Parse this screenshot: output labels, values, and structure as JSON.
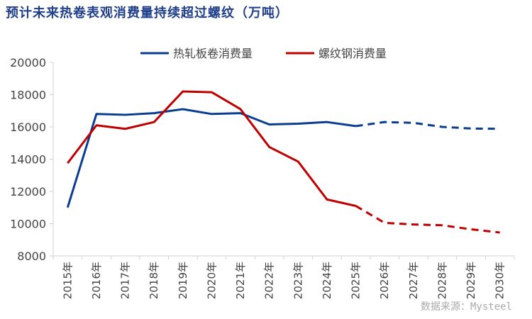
{
  "chart_data": {
    "type": "line",
    "title": "预计未来热卷表观消费量持续超过螺纹（万吨）",
    "categories": [
      "2015年",
      "2016年",
      "2017年",
      "2018年",
      "2019年",
      "2020年",
      "2021年",
      "2022年",
      "2023年",
      "2024年",
      "2025年",
      "2026年",
      "2027年",
      "2028年",
      "2029年",
      "2030年"
    ],
    "forecast_from": "2025年",
    "series": [
      {
        "name": "热轧板卷消费量",
        "color": "#0a3d8f",
        "values": [
          11000,
          16800,
          16750,
          16850,
          17100,
          16800,
          16850,
          16150,
          16200,
          16300,
          16050,
          16300,
          16250,
          16000,
          15900,
          15880
        ]
      },
      {
        "name": "螺纹钢消费量",
        "color": "#c00000",
        "values": [
          13750,
          16100,
          15880,
          16300,
          18200,
          18150,
          17100,
          14750,
          13850,
          11500,
          11100,
          10050,
          9950,
          9900,
          9650,
          9450
        ]
      }
    ],
    "ylim": [
      8000,
      20000
    ],
    "yticks": [
      8000,
      10000,
      12000,
      14000,
      16000,
      18000,
      20000
    ],
    "xlabel": "",
    "ylabel": "",
    "legend": "top-center",
    "grid": false
  },
  "source": "数据来源：Mysteel"
}
